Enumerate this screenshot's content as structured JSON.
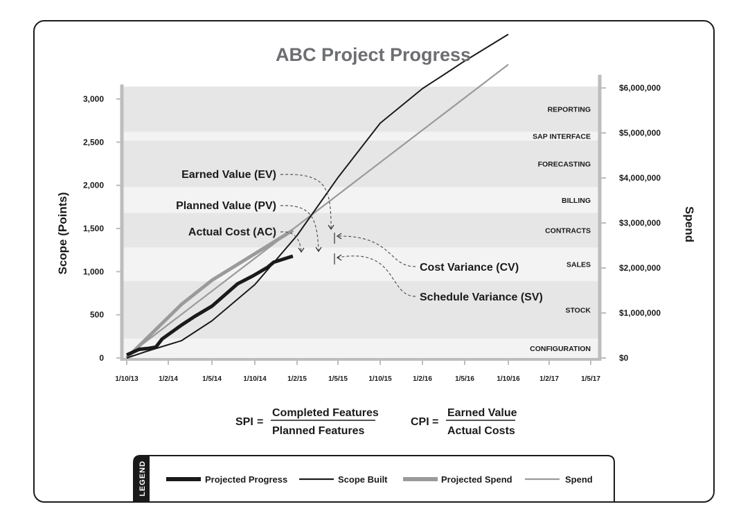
{
  "chart_data": {
    "type": "line",
    "title": "ABC Project Progress",
    "ylabel_left": "Scope (Points)",
    "ylabel_right": "Spend",
    "left_axis": {
      "ticks": [
        0,
        500,
        1000,
        1500,
        2000,
        2500,
        3000
      ],
      "tick_labels": [
        "0",
        "500",
        "1,000",
        "1,500",
        "2,000",
        "2,500",
        "3,000"
      ]
    },
    "right_axis": {
      "ticks": [
        0,
        1000000,
        2000000,
        3000000,
        4000000,
        5000000,
        6000000
      ],
      "tick_labels": [
        "$0",
        "$1,000,000",
        "$2,000,000",
        "$3,000,000",
        "$4,000,000",
        "$5,000,000",
        "$6,000,000"
      ]
    },
    "x_tick_labels": [
      "1/10/13",
      "1/2/14",
      "1/5/14",
      "1/10/14",
      "1/2/15",
      "1/5/15",
      "1/10/15",
      "1/2/16",
      "1/5/16",
      "1/10/16",
      "1/2/17",
      "1/5/17"
    ],
    "bands": [
      {
        "label": "CONFIGURATION",
        "from": 0,
        "to": 225
      },
      {
        "label": "STOCK",
        "from": 225,
        "to": 890
      },
      {
        "label": "SALES",
        "from": 890,
        "to": 1280
      },
      {
        "label": "CONTRACTS",
        "from": 1280,
        "to": 1680
      },
      {
        "label": "BILLING",
        "from": 1680,
        "to": 1980
      },
      {
        "label": "FORECASTING",
        "from": 1980,
        "to": 2520
      },
      {
        "label": "SAP INTERFACE",
        "from": 2520,
        "to": 2620
      },
      {
        "label": "REPORTING",
        "from": 2620,
        "to": 3180
      }
    ],
    "series": [
      {
        "name": "Projected Progress",
        "x": [
          0,
          0.3,
          0.5,
          0.7,
          0.85,
          1.3,
          1.6,
          2.0,
          2.6,
          2.95,
          3.3,
          3.45,
          3.9
        ],
        "y": [
          35,
          100,
          110,
          125,
          220,
          380,
          480,
          600,
          860,
          950,
          1050,
          1110,
          1180
        ]
      },
      {
        "name": "Scope Built",
        "x": [
          0,
          0.5,
          1.3,
          2.0,
          3.0,
          4.0,
          5.0,
          6.0,
          7.0,
          7.5,
          8.0,
          9.0
        ],
        "y": [
          0,
          80,
          200,
          430,
          850,
          1420,
          2090,
          2720,
          3120,
          3280,
          3440,
          3750
        ]
      },
      {
        "name": "Projected Spend",
        "x": [
          0,
          1.3,
          2.0,
          3.9
        ],
        "y": [
          0,
          620,
          900,
          1480
        ]
      },
      {
        "name": "Spend",
        "x": [
          0,
          9.0
        ],
        "y": [
          20,
          3400
        ]
      }
    ],
    "grid": false,
    "legend": "bottom"
  },
  "annotations": {
    "earned_value": "Earned Value (EV)",
    "planned_value": "Planned Value (PV)",
    "actual_cost": "Actual Cost (AC)",
    "cost_variance": "Cost Variance (CV)",
    "schedule_variance": "Schedule Variance (SV)"
  },
  "formulas": {
    "spi": {
      "label": "SPI",
      "eq": "=",
      "numerator": "Completed Features",
      "denominator": "Planned Features"
    },
    "cpi": {
      "label": "CPI",
      "eq": "=",
      "numerator": "Earned Value",
      "denominator": "Actual Costs"
    }
  },
  "legend": {
    "tag": "LEGEND",
    "items": [
      {
        "label": "Projected Progress",
        "color": "#1a1a1a",
        "style": "thick"
      },
      {
        "label": "Scope Built",
        "color": "#1a1a1a",
        "style": "thin"
      },
      {
        "label": "Projected Spend",
        "color": "#9a9a9a",
        "style": "thick"
      },
      {
        "label": "Spend",
        "color": "#9a9a9a",
        "style": "thin"
      }
    ]
  },
  "colors": {
    "band_dark": "#e6e6e6",
    "band_light": "#f3f3f3",
    "axis": "#bdbdbd",
    "ink": "#1a1a1a",
    "grey_line": "#9a9a9a",
    "title": "#6d6e71"
  }
}
